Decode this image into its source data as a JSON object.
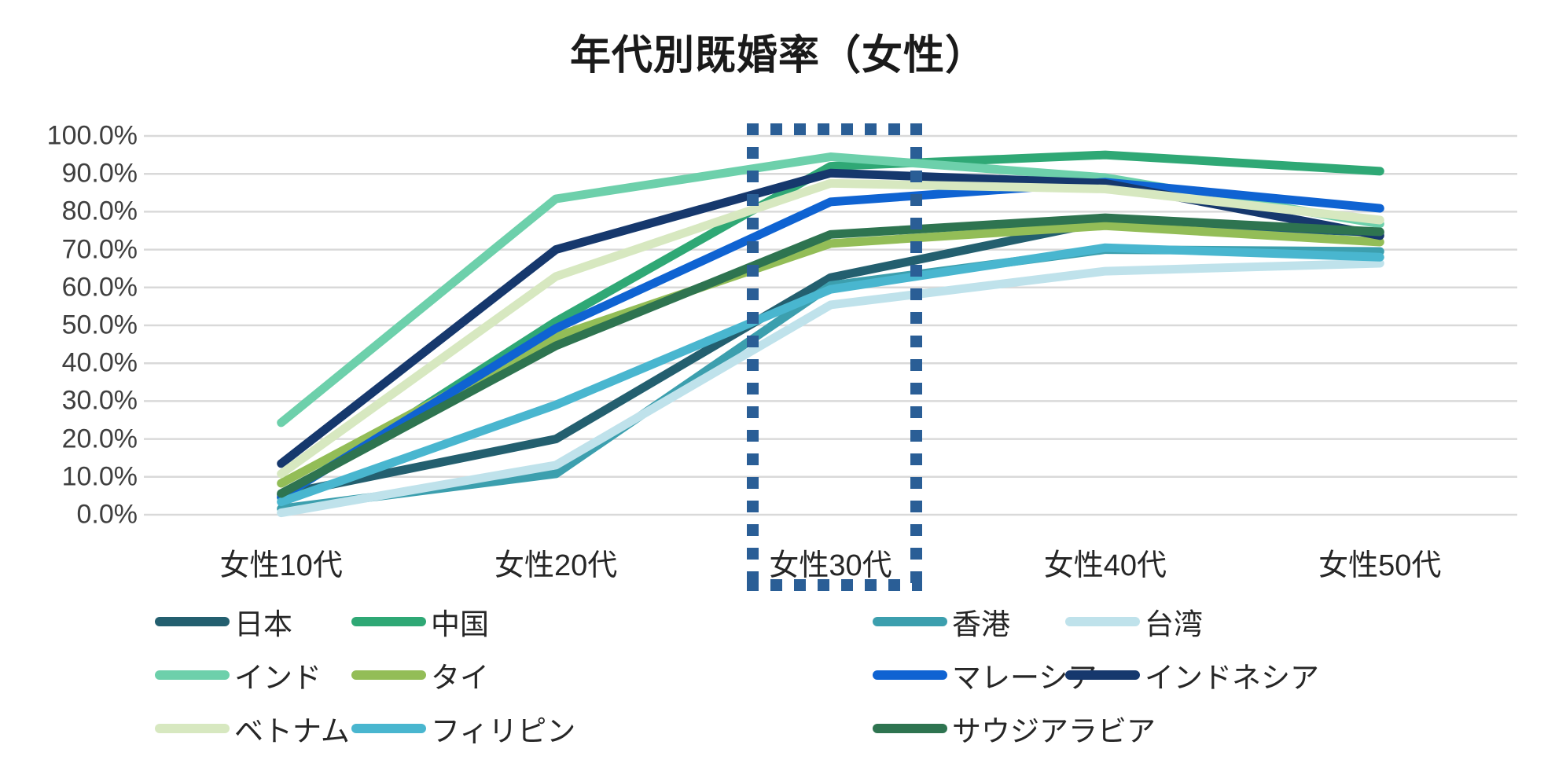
{
  "title": "年代別既婚率（女性）",
  "chart_data": {
    "type": "line",
    "title": "年代別既婚率（女性）",
    "categories": [
      "女性10代",
      "女性20代",
      "女性30代",
      "女性40代",
      "女性50代"
    ],
    "series": [
      {
        "name": "日本",
        "color": "#235F6F",
        "values": [
          5.3,
          20.0,
          62.6,
          77.5,
          74.5
        ]
      },
      {
        "name": "中国",
        "color": "#2FA875",
        "values": [
          4.5,
          51.0,
          92.0,
          95.0,
          90.7
        ]
      },
      {
        "name": "香港",
        "color": "#3C9FAE",
        "values": [
          1.6,
          10.8,
          60.5,
          70.0,
          69.5
        ]
      },
      {
        "name": "台湾",
        "color": "#BFE2EB",
        "values": [
          0.5,
          13.1,
          55.4,
          64.3,
          66.4
        ]
      },
      {
        "name": "インド",
        "color": "#6DD0AB",
        "values": [
          24.3,
          83.4,
          94.5,
          89.0,
          76.8
        ]
      },
      {
        "name": "タイ",
        "color": "#93BD57",
        "values": [
          8.3,
          47.0,
          71.6,
          76.3,
          72.0
        ]
      },
      {
        "name": "マレーシア",
        "color": "#0F63D2",
        "values": [
          4.7,
          49.2,
          82.6,
          87.8,
          80.9
        ]
      },
      {
        "name": "インドネシア",
        "color": "#16386D",
        "values": [
          13.5,
          70.0,
          90.2,
          87.5,
          73.7
        ]
      },
      {
        "name": "ベトナム",
        "color": "#D7E8C0",
        "values": [
          10.8,
          62.9,
          87.5,
          86.0,
          77.8
        ]
      },
      {
        "name": "フィリピン",
        "color": "#49B6CF",
        "values": [
          3.4,
          29.0,
          59.5,
          70.5,
          68.0
        ]
      },
      {
        "name": "サウジアラビア",
        "color": "#2E7450",
        "values": [
          5.6,
          44.6,
          74.0,
          78.4,
          74.7
        ]
      }
    ],
    "y_axis": {
      "min": 0,
      "max": 100,
      "step": 10,
      "tick_labels": [
        "100.0%",
        "90.0%",
        "80.0%",
        "70.0%",
        "60.0%",
        "50.0%",
        "40.0%",
        "30.0%",
        "20.0%",
        "10.0%",
        "0.0%"
      ]
    },
    "grid": true,
    "gridline_color": "#d9d9d9",
    "legend_position": "bottom",
    "highlight": {
      "category": "女性30代",
      "style": "dotted-rectangle",
      "color": "#2A5E96"
    }
  }
}
